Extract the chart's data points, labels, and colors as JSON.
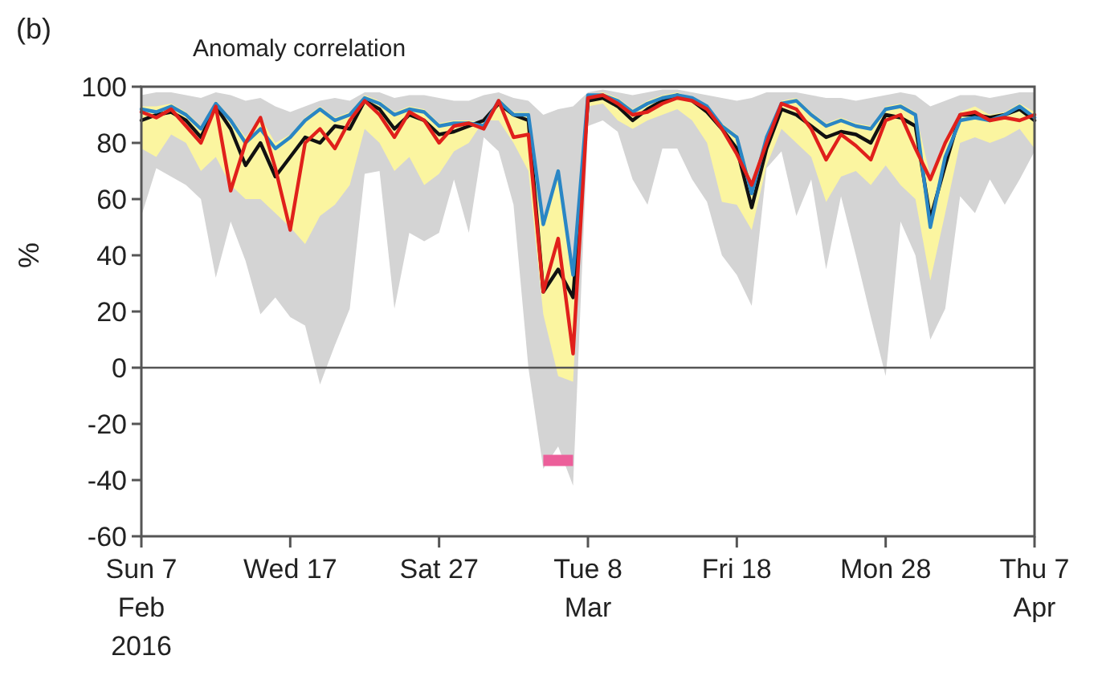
{
  "chart_data": {
    "type": "line",
    "title": "Anomaly correlation",
    "ylabel": "%",
    "annotations": [
      "(b)"
    ],
    "x": [
      "2016-02-07",
      "2016-02-08",
      "2016-02-09",
      "2016-02-10",
      "2016-02-11",
      "2016-02-12",
      "2016-02-13",
      "2016-02-14",
      "2016-02-15",
      "2016-02-16",
      "2016-02-17",
      "2016-02-18",
      "2016-02-19",
      "2016-02-20",
      "2016-02-21",
      "2016-02-22",
      "2016-02-23",
      "2016-02-24",
      "2016-02-25",
      "2016-02-26",
      "2016-02-27",
      "2016-02-28",
      "2016-02-29",
      "2016-03-01",
      "2016-03-02",
      "2016-03-03",
      "2016-03-04",
      "2016-03-05",
      "2016-03-06",
      "2016-03-07",
      "2016-03-08",
      "2016-03-09",
      "2016-03-10",
      "2016-03-11",
      "2016-03-12",
      "2016-03-13",
      "2016-03-14",
      "2016-03-15",
      "2016-03-16",
      "2016-03-17",
      "2016-03-18",
      "2016-03-19",
      "2016-03-20",
      "2016-03-21",
      "2016-03-22",
      "2016-03-23",
      "2016-03-24",
      "2016-03-25",
      "2016-03-26",
      "2016-03-27",
      "2016-03-28",
      "2016-03-29",
      "2016-03-30",
      "2016-03-31",
      "2016-04-01",
      "2016-04-02",
      "2016-04-03",
      "2016-04-04",
      "2016-04-05",
      "2016-04-06",
      "2016-04-07"
    ],
    "xlim": [
      "2016-02-07",
      "2016-04-07"
    ],
    "xticks": [
      {
        "value": "2016-02-07",
        "label": "Sun 7\nFeb\n2016"
      },
      {
        "value": "2016-02-17",
        "label": "Wed 17"
      },
      {
        "value": "2016-02-27",
        "label": "Sat 27"
      },
      {
        "value": "2016-03-08",
        "label": "Tue 8\nMar"
      },
      {
        "value": "2016-03-18",
        "label": "Fri 18"
      },
      {
        "value": "2016-03-28",
        "label": "Mon 28"
      },
      {
        "value": "2016-04-07",
        "label": "Thu 7\nApr"
      }
    ],
    "ylim": [
      -60,
      100
    ],
    "yticks": [
      -60,
      -40,
      -20,
      0,
      20,
      40,
      60,
      80,
      100
    ],
    "ref_lines": [
      {
        "axis": "y",
        "value": 0,
        "color": "#555555"
      }
    ],
    "series": [
      {
        "color": "#d4d4d4",
        "values": [
          null,
          null,
          null,
          null,
          null,
          null,
          null,
          null,
          null,
          null,
          null,
          null,
          null,
          null,
          null,
          null,
          null,
          null,
          null,
          null,
          null,
          null,
          null,
          null,
          null,
          null,
          null,
          null,
          null,
          null,
          null,
          null,
          null,
          null,
          null,
          null,
          null,
          null,
          null,
          null,
          null,
          null,
          null,
          null,
          null,
          null,
          null,
          null,
          null,
          null,
          null,
          null,
          null,
          null,
          null,
          null,
          null,
          null,
          null,
          null,
          null
        ],
        "lower": [
          54,
          71,
          68,
          65,
          60,
          32,
          52,
          38,
          19,
          25,
          18,
          15,
          -6,
          8,
          21,
          69,
          70,
          21,
          48,
          45,
          48,
          67,
          48,
          82,
          77,
          58,
          0,
          -36,
          -28,
          -42,
          86,
          88,
          84,
          67,
          58,
          78,
          78,
          67,
          59,
          40,
          33,
          22,
          71,
          77,
          54,
          67,
          35,
          61,
          40,
          18,
          -3,
          52,
          40,
          10,
          21,
          61,
          55,
          67,
          58,
          67,
          77
        ],
        "upper": [
          97,
          98,
          98,
          97,
          96,
          98,
          97,
          95,
          96,
          93,
          91,
          93,
          95,
          96,
          95,
          98,
          98,
          96,
          97,
          97,
          96,
          95,
          95,
          97,
          98,
          96,
          95,
          90,
          92,
          93,
          98,
          99,
          98,
          97,
          98,
          99,
          99,
          98,
          97,
          96,
          95,
          96,
          98,
          98,
          98,
          97,
          96,
          96,
          95,
          96,
          97,
          98,
          97,
          93,
          95,
          97,
          97,
          96,
          97,
          98,
          98
        ]
      },
      {
        "color": "#fbf5a0",
        "values": [
          null,
          null,
          null,
          null,
          null,
          null,
          null,
          null,
          null,
          null,
          null,
          null,
          null,
          null,
          null,
          null,
          null,
          null,
          null,
          null,
          null,
          null,
          null,
          null,
          null,
          null,
          null,
          null,
          null,
          null,
          null,
          null,
          null,
          null,
          null,
          null,
          null,
          null,
          null,
          null,
          null,
          null,
          null,
          null,
          null,
          null,
          null,
          null,
          null,
          null,
          null,
          null,
          null,
          null,
          null,
          null,
          null,
          null,
          null,
          null,
          null
        ],
        "lower": [
          78,
          75,
          83,
          80,
          70,
          75,
          65,
          60,
          60,
          55,
          50,
          44,
          54,
          58,
          65,
          85,
          80,
          70,
          75,
          65,
          69,
          77,
          80,
          88,
          88,
          80,
          70,
          19,
          -3,
          -5,
          93,
          94,
          88,
          85,
          88,
          90,
          92,
          88,
          80,
          59,
          58,
          49,
          72,
          85,
          80,
          75,
          59,
          68,
          70,
          65,
          72,
          65,
          60,
          31,
          55,
          80,
          82,
          80,
          82,
          85,
          78
        ],
        "upper": [
          93,
          93,
          94,
          91,
          86,
          95,
          89,
          82,
          89,
          80,
          83,
          89,
          93,
          89,
          91,
          97,
          95,
          91,
          93,
          92,
          87,
          88,
          88,
          87,
          96,
          91,
          91,
          52,
          71,
          35,
          97,
          98,
          96,
          92,
          95,
          97,
          98,
          96,
          93,
          87,
          83,
          66,
          83,
          95,
          96,
          91,
          87,
          89,
          87,
          86,
          93,
          94,
          91,
          68,
          81,
          91,
          93,
          90,
          91,
          94,
          91
        ]
      },
      {
        "color": "#111111",
        "values": [
          88,
          90,
          91,
          88,
          82,
          93,
          85,
          72,
          80,
          68,
          75,
          82,
          80,
          86,
          85,
          95,
          92,
          85,
          90,
          88,
          83,
          84,
          86,
          88,
          94,
          90,
          88,
          27,
          35,
          25,
          95,
          96,
          93,
          88,
          92,
          95,
          97,
          95,
          91,
          85,
          78,
          57,
          78,
          92,
          90,
          86,
          82,
          84,
          83,
          80,
          90,
          89,
          86,
          53,
          72,
          90,
          90,
          89,
          90,
          92,
          88
        ]
      },
      {
        "color": "#2a86c5",
        "values": [
          92,
          91,
          93,
          90,
          85,
          94,
          88,
          80,
          85,
          78,
          82,
          88,
          92,
          88,
          90,
          96,
          94,
          90,
          92,
          91,
          86,
          87,
          87,
          86,
          95,
          90,
          90,
          51,
          70,
          33,
          97,
          97,
          95,
          91,
          94,
          96,
          97,
          96,
          93,
          86,
          82,
          62,
          82,
          94,
          95,
          90,
          86,
          88,
          86,
          85,
          92,
          93,
          90,
          50,
          75,
          88,
          89,
          88,
          90,
          93,
          89
        ]
      },
      {
        "color": "#e0201b",
        "values": [
          91,
          89,
          92,
          86,
          80,
          93,
          63,
          80,
          89,
          71,
          49,
          80,
          85,
          78,
          88,
          95,
          90,
          82,
          91,
          88,
          80,
          86,
          87,
          85,
          95,
          82,
          83,
          27,
          46,
          5,
          96,
          97,
          94,
          90,
          91,
          94,
          96,
          95,
          92,
          85,
          76,
          65,
          80,
          94,
          92,
          85,
          74,
          83,
          79,
          74,
          88,
          90,
          78,
          67,
          80,
          90,
          91,
          88,
          89,
          88,
          90
        ]
      },
      {
        "color": "#ec5f9a",
        "x": [
          "2016-03-05",
          "2016-03-07"
        ],
        "values": [
          -33,
          -33
        ]
      }
    ]
  }
}
